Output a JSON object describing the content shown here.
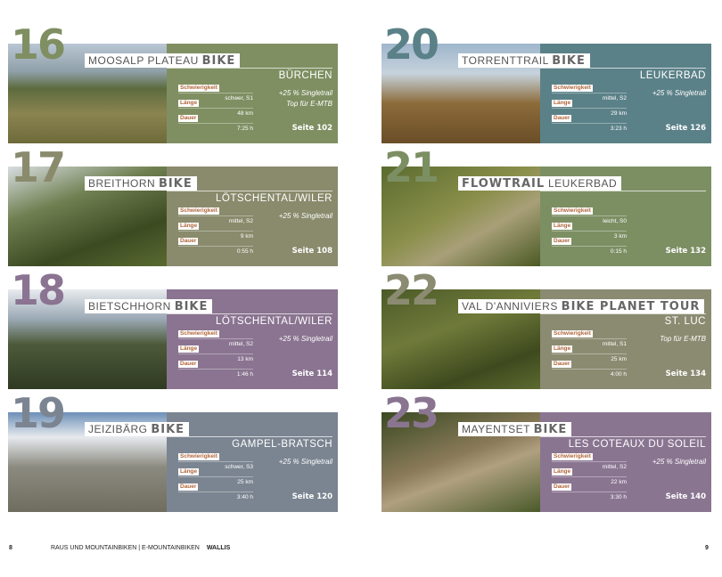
{
  "labels": {
    "difficulty": "Schwierigkeit",
    "length": "Länge",
    "duration": "Dauer"
  },
  "cards": [
    {
      "num": "16",
      "light": "MOOSALP PLATEAU",
      "bold": "BIKE",
      "bold_first": false,
      "place": "BÜRCHEN",
      "difficulty": "schwer, S1",
      "length": "48 km",
      "duration": "7:25 h",
      "notes": [
        "+25 % Singletrail",
        "Top für E-MTB"
      ],
      "page": "Seite 102",
      "color": "#7f8f62",
      "photo": "mountain-bikers-on-trail"
    },
    {
      "num": "17",
      "light": "BREITHORN",
      "bold": "BIKE",
      "bold_first": false,
      "place": "LÖTSCHENTAL/WILER",
      "difficulty": "mittel, S2",
      "length": "9 km",
      "duration": "0:55 h",
      "notes": [
        "+25 % Singletrail"
      ],
      "page": "Seite 108",
      "color": "#898b6c",
      "photo": "biker-in-forest"
    },
    {
      "num": "18",
      "light": "BIETSCHHORN",
      "bold": "BIKE",
      "bold_first": false,
      "place": "LÖTSCHENTAL/WILER",
      "difficulty": "mittel, S2",
      "length": "13 km",
      "duration": "1:46 h",
      "notes": [
        "+25 % Singletrail"
      ],
      "page": "Seite 114",
      "color": "#8a7491",
      "photo": "alpine-valley"
    },
    {
      "num": "19",
      "light": "JEIZIBÄRG",
      "bold": "BIKE",
      "bold_first": false,
      "place": "GAMPEL-BRATSCH",
      "difficulty": "schwer, S3",
      "length": "25 km",
      "duration": "3:40 h",
      "notes": [
        "+25 % Singletrail"
      ],
      "page": "Seite 120",
      "color": "#7b8591",
      "photo": "rocky-slope"
    },
    {
      "num": "20",
      "light": "TORRENTTRAIL",
      "bold": "BIKE",
      "bold_first": false,
      "place": "LEUKERBAD",
      "difficulty": "mittel, S2",
      "length": "29 km",
      "duration": "3:23 h",
      "notes": [
        "+25 % Singletrail"
      ],
      "page": "Seite 126",
      "color": "#5b8188",
      "photo": "mountain-panorama"
    },
    {
      "num": "21",
      "light": "LEUKERBAD",
      "bold": "FLOWTRAIL",
      "bold_first": true,
      "place": "",
      "difficulty": "leicht, S0",
      "length": "3 km",
      "duration": "0:15 h",
      "notes": [],
      "page": "Seite 132",
      "color": "#7c8f63",
      "photo": "flowtrail-bikers"
    },
    {
      "num": "22",
      "light": "VAL D'ANNIVIERS",
      "bold": "BIKE PLANET TOUR",
      "bold_first": false,
      "place": "ST. LUC",
      "difficulty": "mittel, S1",
      "length": "25 km",
      "duration": "4:00 h",
      "notes": [
        "Top für E-MTB"
      ],
      "page": "Seite 134",
      "color": "#8b8b72",
      "photo": "meadow-trails"
    },
    {
      "num": "23",
      "light": "MAYENTSET",
      "bold": "BIKE",
      "bold_first": false,
      "place": "LES COTEAUX DU SOLEIL",
      "difficulty": "mittel, S2",
      "length": "22 km",
      "duration": "3:30 h",
      "notes": [
        "+25 % Singletrail"
      ],
      "page": "Seite 140",
      "color": "#8a7591",
      "photo": "forest-rock"
    }
  ],
  "footer": {
    "left_page": "8",
    "running_head": "RAUS UND MOUNTAINBIKEN | E-MOUNTAINBIKEN",
    "region": "WALLIS",
    "right_page": "9"
  }
}
